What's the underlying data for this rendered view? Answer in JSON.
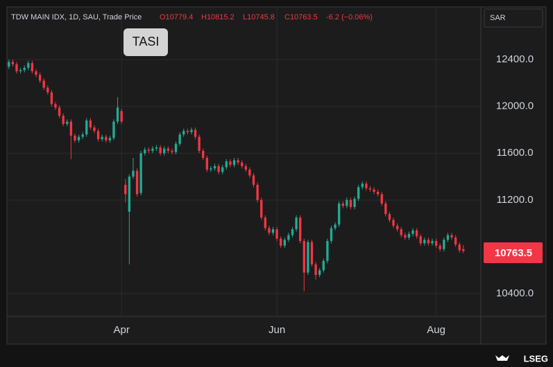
{
  "header": {
    "symbol": "TDW MAIN IDX, 1D, SAU, Trade Price",
    "ohlc": [
      "O10779.4",
      "H10815.2",
      "L10745.8",
      "C10763.5"
    ],
    "change": "-6.2 (−0.06%)"
  },
  "currency": "SAR",
  "badge": "TASI",
  "last_price_label": "10763.5",
  "brand": "LSEG",
  "chart_data": {
    "type": "candlestick",
    "up_color": "#22ab94",
    "down_color": "#f23645",
    "grid": true,
    "xlim": [
      -0.5,
      121.5
    ],
    "xticks": [
      {
        "value": 29,
        "label": "Apr"
      },
      {
        "value": 69,
        "label": "Jun"
      },
      {
        "value": 110,
        "label": "Aug"
      }
    ],
    "ylim": [
      10205,
      12850
    ],
    "yticks": [
      {
        "value": 10400,
        "label": "10400.0"
      },
      {
        "value": 11200,
        "label": "11200.0"
      },
      {
        "value": 11600,
        "label": "11600.0"
      },
      {
        "value": 12000,
        "label": "12000.0"
      },
      {
        "value": 12400,
        "label": "12400.0"
      }
    ],
    "open": [
      12340,
      12380,
      12360,
      12300,
      12310,
      12330,
      12370,
      12300,
      12270,
      12220,
      12160,
      12120,
      12020,
      11990,
      11920,
      11850,
      11870,
      11750,
      11710,
      11740,
      11760,
      11880,
      11820,
      11790,
      11720,
      11740,
      11710,
      11730,
      11870,
      11960,
      11330,
      11100,
      11400,
      11450,
      11260,
      11600,
      11630,
      11620,
      11640,
      11650,
      11600,
      11640,
      11620,
      11610,
      11680,
      11760,
      11790,
      11780,
      11800,
      11740,
      11620,
      11560,
      11460,
      11470,
      11490,
      11440,
      11480,
      11530,
      11500,
      11540,
      11520,
      11490,
      11460,
      11410,
      11330,
      11200,
      11050,
      10960,
      10920,
      10950,
      10870,
      10810,
      10860,
      10900,
      10950,
      11050,
      10850,
      10580,
      10840,
      10650,
      10560,
      10600,
      10680,
      10850,
      10960,
      10990,
      11170,
      11150,
      11200,
      11140,
      11210,
      11310,
      11340,
      11300,
      11290,
      11270,
      11250,
      11170,
      11080,
      11030,
      10980,
      10950,
      10900,
      10880,
      10910,
      10940,
      10890,
      10830,
      10860,
      10830,
      10850,
      10810,
      10780,
      10860,
      10900,
      10880,
      10820,
      10779.4
    ],
    "high": [
      12400,
      12400,
      12380,
      12330,
      12350,
      12390,
      12390,
      12320,
      12290,
      12240,
      12180,
      12140,
      12040,
      12010,
      11940,
      11890,
      11890,
      11770,
      11760,
      11780,
      11900,
      11900,
      11840,
      11810,
      11760,
      11760,
      11750,
      11890,
      12080,
      11980,
      11380,
      11420,
      11560,
      11470,
      11620,
      11650,
      11650,
      11660,
      11670,
      11670,
      11660,
      11660,
      11640,
      11700,
      11780,
      11810,
      11810,
      11820,
      11820,
      11760,
      11640,
      11580,
      11490,
      11510,
      11510,
      11500,
      11550,
      11550,
      11560,
      11560,
      11540,
      11510,
      11480,
      11430,
      11350,
      11220,
      11070,
      10980,
      10970,
      10970,
      10890,
      10880,
      10920,
      10970,
      11070,
      11070,
      10870,
      10860,
      10860,
      10670,
      10620,
      10700,
      10870,
      10980,
      11010,
      11190,
      11190,
      11220,
      11220,
      11230,
      11330,
      11360,
      11360,
      11320,
      11310,
      11290,
      11270,
      11190,
      11100,
      11050,
      11000,
      10970,
      10920,
      10930,
      10960,
      10960,
      10910,
      10880,
      10880,
      10870,
      10870,
      10830,
      10880,
      10920,
      10920,
      10900,
      10840,
      10815.2
    ],
    "low": [
      12320,
      12340,
      12280,
      12280,
      12290,
      12310,
      12280,
      12250,
      12200,
      12140,
      12100,
      12000,
      11970,
      11900,
      11830,
      11830,
      11550,
      11690,
      11690,
      11720,
      11740,
      11800,
      11770,
      11700,
      11700,
      11690,
      11690,
      11710,
      11850,
      11850,
      11180,
      10650,
      11380,
      11230,
      11240,
      11580,
      11600,
      11600,
      11620,
      11580,
      11580,
      11600,
      11590,
      11590,
      11660,
      11740,
      11760,
      11760,
      11720,
      11600,
      11540,
      11440,
      11440,
      11450,
      11420,
      11420,
      11460,
      11480,
      11480,
      11500,
      11470,
      11440,
      11390,
      11310,
      11180,
      11030,
      10940,
      10900,
      10900,
      10850,
      10790,
      10790,
      10840,
      10880,
      10930,
      10830,
      10420,
      10560,
      10630,
      10520,
      10540,
      10580,
      10660,
      10830,
      10940,
      10970,
      11130,
      11130,
      11120,
      11120,
      11190,
      11290,
      11280,
      11270,
      11250,
      11230,
      11150,
      11060,
      11010,
      10960,
      10930,
      10880,
      10860,
      10860,
      10890,
      10870,
      10810,
      10810,
      10810,
      10810,
      10790,
      10760,
      10760,
      10840,
      10860,
      10800,
      10750,
      10745.8
    ],
    "close": [
      12380,
      12360,
      12300,
      12310,
      12330,
      12370,
      12300,
      12270,
      12220,
      12160,
      12120,
      12020,
      11990,
      11920,
      11850,
      11870,
      11750,
      11710,
      11740,
      11760,
      11880,
      11820,
      11790,
      11720,
      11740,
      11710,
      11730,
      11870,
      11990,
      11870,
      11250,
      11400,
      11450,
      11250,
      11600,
      11630,
      11620,
      11640,
      11650,
      11600,
      11640,
      11620,
      11610,
      11680,
      11760,
      11790,
      11780,
      11800,
      11740,
      11620,
      11560,
      11460,
      11470,
      11490,
      11440,
      11480,
      11530,
      11500,
      11540,
      11520,
      11490,
      11460,
      11410,
      11330,
      11200,
      11050,
      10960,
      10920,
      10950,
      10870,
      10810,
      10860,
      10900,
      10950,
      11050,
      10850,
      10580,
      10840,
      10650,
      10560,
      10600,
      10680,
      10850,
      10960,
      10990,
      11170,
      11150,
      11200,
      11140,
      11210,
      11310,
      11340,
      11300,
      11290,
      11270,
      11250,
      11170,
      11080,
      11030,
      10980,
      10950,
      10900,
      10880,
      10910,
      10940,
      10890,
      10830,
      10860,
      10830,
      10850,
      10810,
      10780,
      10860,
      10900,
      10880,
      10820,
      10770,
      10763.5
    ]
  }
}
